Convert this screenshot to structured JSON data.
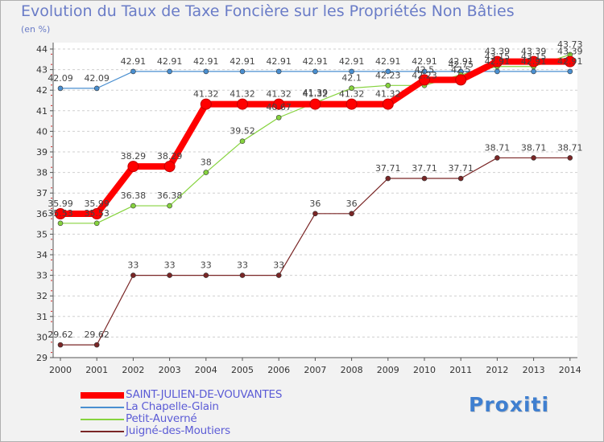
{
  "chart_data": {
    "type": "line",
    "title": "Evolution du Taux de Taxe Foncière sur les Propriétés Non Bâties",
    "ylabel": "(en %)",
    "xlabel": "",
    "x": [
      "2000",
      "2001",
      "2002",
      "2003",
      "2004",
      "2005",
      "2006",
      "2007",
      "2008",
      "2009",
      "2010",
      "2011",
      "2012",
      "2013",
      "2014"
    ],
    "ylim": [
      29,
      44
    ],
    "y_ticks": [
      29,
      30,
      31,
      32,
      33,
      34,
      35,
      36,
      37,
      38,
      39,
      40,
      41,
      42,
      43,
      44
    ],
    "grid": "horizontal-dashed",
    "legend_position": "bottom-left",
    "series": [
      {
        "name": "SAINT-JULIEN-DE-VOUVANTES",
        "color": "#ff0000",
        "style": "thick",
        "values": [
          35.99,
          35.99,
          38.29,
          38.29,
          41.32,
          41.32,
          41.32,
          41.32,
          41.32,
          41.32,
          42.5,
          42.5,
          43.39,
          43.39,
          43.39
        ],
        "labels": [
          "35.99",
          "35.99",
          "38.29",
          "38.29",
          "41.32",
          "41.32",
          "41.32",
          "41.32",
          "41.32",
          "41.32",
          "42.5",
          "42.5",
          "43.39",
          "43.39",
          "43.39"
        ]
      },
      {
        "name": "La Chapelle-Glain",
        "color": "#4a8fd0",
        "style": "thin",
        "values": [
          42.09,
          42.09,
          42.91,
          42.91,
          42.91,
          42.91,
          42.91,
          42.91,
          42.91,
          42.91,
          42.91,
          42.91,
          42.91,
          42.91,
          42.91
        ],
        "labels": [
          "42.09",
          "42.09",
          "42.91",
          "42.91",
          "42.91",
          "42.91",
          "42.91",
          "42.91",
          "42.91",
          "42.91",
          "42.91",
          "42.91",
          "42.91",
          "42.91",
          "42.91"
        ]
      },
      {
        "name": "Petit-Auverné",
        "color": "#86d33e",
        "style": "thin",
        "values": [
          35.53,
          35.53,
          36.38,
          36.38,
          38,
          39.52,
          40.67,
          41.39,
          42.1,
          42.23,
          42.23,
          42.75,
          43.15,
          43.15,
          43.73
        ],
        "labels": [
          "35.53",
          "35.53",
          "36.38",
          "36.38",
          "38",
          "39.52",
          "40.67",
          "41.39",
          "42.1",
          "42.23",
          "42.23",
          "42.75",
          "43.15",
          "43.15",
          "43.73"
        ]
      },
      {
        "name": "Juigné-des-Moutiers",
        "color": "#7a2626",
        "style": "thin",
        "values": [
          29.62,
          29.62,
          33,
          33,
          33,
          33,
          33,
          36,
          36,
          37.71,
          37.71,
          37.71,
          38.71,
          38.71,
          38.71
        ],
        "labels": [
          "29.62",
          "29.62",
          "33",
          "33",
          "33",
          "33",
          "33",
          "36",
          "36",
          "37.71",
          "37.71",
          "37.71",
          "38.71",
          "38.71",
          "38.71"
        ]
      }
    ]
  },
  "logo_text": "Proxiti"
}
